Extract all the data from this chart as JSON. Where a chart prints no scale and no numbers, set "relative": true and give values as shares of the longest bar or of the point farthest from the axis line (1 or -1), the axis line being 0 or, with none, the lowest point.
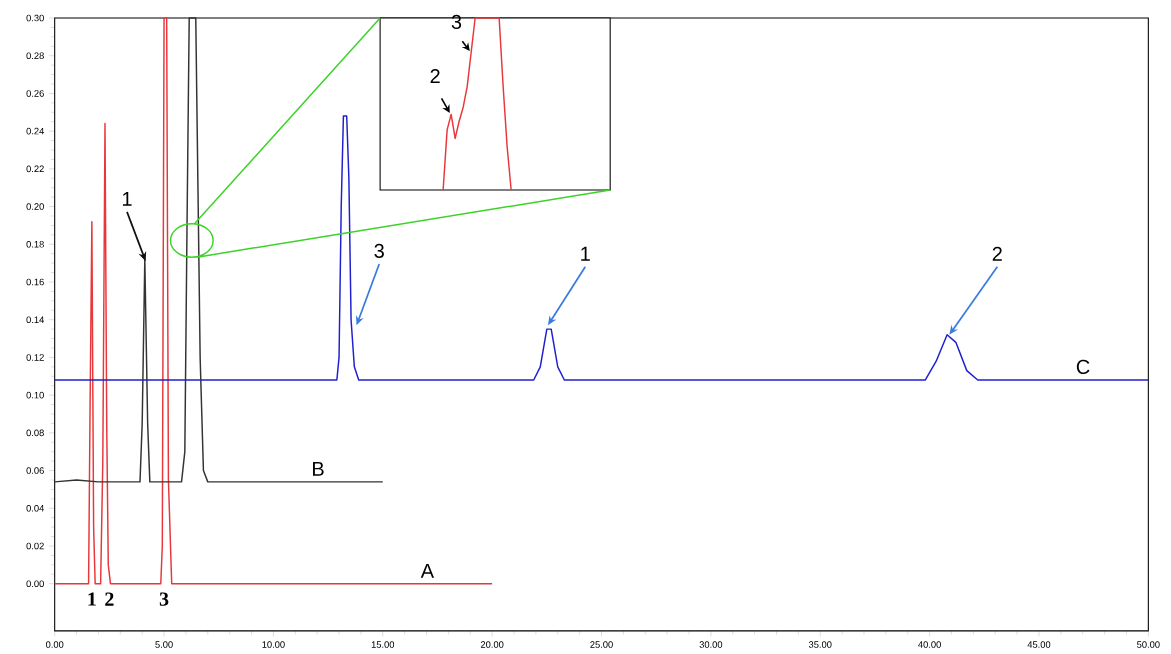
{
  "chart_data": [
    {
      "type": "line",
      "marker": "none",
      "line_style": "solid",
      "legend": false,
      "xlim": [
        0,
        50
      ],
      "ylim": [
        -0.025,
        0.3
      ],
      "xticks": [
        {
          "value": 0,
          "label": "0.00"
        },
        {
          "value": 5,
          "label": "5.00"
        },
        {
          "value": 10,
          "label": "10.00"
        },
        {
          "value": 15,
          "label": "15.00"
        },
        {
          "value": 20,
          "label": "20.00"
        },
        {
          "value": 25,
          "label": "25.00"
        },
        {
          "value": 30,
          "label": "30.00"
        },
        {
          "value": 35,
          "label": "35.00"
        },
        {
          "value": 40,
          "label": "40.00"
        },
        {
          "value": 45,
          "label": "45.00"
        },
        {
          "value": 50,
          "label": "50.00"
        }
      ],
      "yticks": [
        {
          "value": 0,
          "label": "0.00"
        },
        {
          "value": 0.02,
          "label": "0.02"
        },
        {
          "value": 0.04,
          "label": "0.04"
        },
        {
          "value": 0.06,
          "label": "0.06"
        },
        {
          "value": 0.08,
          "label": "0.08"
        },
        {
          "value": 0.1,
          "label": "0.10"
        },
        {
          "value": 0.12,
          "label": "0.12"
        },
        {
          "value": 0.14,
          "label": "0.14"
        },
        {
          "value": 0.16,
          "label": "0.16"
        },
        {
          "value": 0.18,
          "label": "0.18"
        },
        {
          "value": 0.2,
          "label": "0.20"
        },
        {
          "value": 0.22,
          "label": "0.22"
        },
        {
          "value": 0.24,
          "label": "0.24"
        },
        {
          "value": 0.26,
          "label": "0.26"
        },
        {
          "value": 0.28,
          "label": "0.28"
        },
        {
          "value": 0.3,
          "label": "0.30"
        }
      ],
      "series": [
        {
          "name": "A",
          "color": "#e8373a",
          "x": [
            0,
            1.55,
            1.62,
            1.7,
            1.78,
            1.85,
            2.1,
            2.2,
            2.3,
            2.38,
            2.45,
            2.55,
            4.85,
            4.92,
            5.0,
            5.12,
            5.2,
            5.35,
            20
          ],
          "values": [
            0,
            0,
            0.097,
            0.192,
            0.03,
            0,
            0,
            0.065,
            0.244,
            0.083,
            0.01,
            0,
            0,
            0.02,
            0.3,
            0.3,
            0.055,
            0,
            0
          ]
        },
        {
          "name": "B",
          "color": "#333333",
          "x": [
            0,
            1,
            2,
            3.9,
            4.0,
            4.12,
            4.25,
            4.35,
            5.8,
            5.95,
            6.05,
            6.15,
            6.45,
            6.55,
            6.65,
            6.8,
            7.0,
            15
          ],
          "values": [
            0.054,
            0.055,
            0.054,
            0.054,
            0.085,
            0.172,
            0.085,
            0.054,
            0.054,
            0.07,
            0.19,
            0.3,
            0.3,
            0.21,
            0.12,
            0.06,
            0.054,
            0.054
          ]
        },
        {
          "name": "C",
          "color": "#1f1fd0",
          "x": [
            0,
            12.9,
            13.0,
            13.1,
            13.2,
            13.35,
            13.45,
            13.55,
            13.7,
            13.9,
            21.9,
            22.2,
            22.5,
            22.7,
            23.0,
            23.3,
            39.8,
            40.3,
            40.8,
            41.2,
            41.7,
            42.2,
            50
          ],
          "values": [
            0.108,
            0.108,
            0.12,
            0.2,
            0.248,
            0.248,
            0.215,
            0.14,
            0.115,
            0.108,
            0.108,
            0.115,
            0.135,
            0.135,
            0.115,
            0.108,
            0.108,
            0.118,
            0.132,
            0.128,
            0.113,
            0.108,
            0.108
          ]
        }
      ],
      "annotations": [
        {
          "text": "1",
          "x": 1.7,
          "y": 0
        },
        {
          "text": "2",
          "x": 2.5,
          "y": 0
        },
        {
          "text": "3",
          "x": 5.0,
          "y": 0
        },
        {
          "text": "1",
          "x": 4.16,
          "y": 0.171
        },
        {
          "text": "3",
          "x": 13.8,
          "y": 0.137
        },
        {
          "text": "1",
          "x": 22.55,
          "y": 0.137
        },
        {
          "text": "2",
          "x": 40.9,
          "y": 0.132
        }
      ]
    },
    {
      "type": "line",
      "relative": true,
      "marker": "none",
      "line_style": "solid",
      "legend": false,
      "categories": [
        null,
        null,
        null,
        null,
        null,
        null,
        null,
        null,
        null,
        null,
        null,
        null,
        null,
        null,
        null,
        null,
        null,
        null
      ],
      "series": [
        {
          "color": "#e8373a",
          "values": [
            0,
            0.35,
            0.44,
            0.3,
            0.4,
            0.48,
            0.6,
            0.8,
            1,
            1,
            1,
            1,
            1,
            1,
            1,
            0.6,
            0.25,
            0
          ]
        }
      ],
      "annotations": [
        "2",
        "3"
      ]
    }
  ]
}
